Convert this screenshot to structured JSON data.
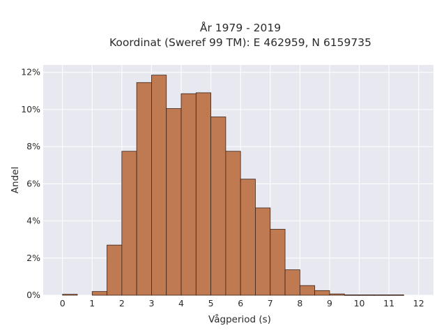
{
  "chart_data": {
    "type": "bar",
    "title_line1": "År 1979 - 2019",
    "title_line2": "Koordinat (Sweref 99 TM): E 462959, N 6159735",
    "xlabel": "Vågperiod (s)",
    "ylabel": "Andel",
    "bin_width": 0.5,
    "bins": [
      {
        "start": 0.0,
        "value": 0.0005
      },
      {
        "start": 0.5,
        "value": 0.0
      },
      {
        "start": 1.0,
        "value": 0.002
      },
      {
        "start": 1.5,
        "value": 0.027
      },
      {
        "start": 2.0,
        "value": 0.0775
      },
      {
        "start": 2.5,
        "value": 0.1145
      },
      {
        "start": 3.0,
        "value": 0.1185
      },
      {
        "start": 3.5,
        "value": 0.1005
      },
      {
        "start": 4.0,
        "value": 0.1085
      },
      {
        "start": 4.5,
        "value": 0.109
      },
      {
        "start": 5.0,
        "value": 0.096
      },
      {
        "start": 5.5,
        "value": 0.0775
      },
      {
        "start": 6.0,
        "value": 0.0625
      },
      {
        "start": 6.5,
        "value": 0.047
      },
      {
        "start": 7.0,
        "value": 0.0355
      },
      {
        "start": 7.5,
        "value": 0.0137
      },
      {
        "start": 8.0,
        "value": 0.0052
      },
      {
        "start": 8.5,
        "value": 0.0025
      },
      {
        "start": 9.0,
        "value": 0.0007
      },
      {
        "start": 9.5,
        "value": 0.0002
      },
      {
        "start": 10.0,
        "value": 0.0002
      },
      {
        "start": 10.5,
        "value": 0.0002
      },
      {
        "start": 11.0,
        "value": 0.0002
      }
    ],
    "xlim": [
      -0.65,
      12.5
    ],
    "ylim": [
      0,
      0.124
    ],
    "x_ticks": [
      {
        "value": 0,
        "label": "0"
      },
      {
        "value": 1,
        "label": "1"
      },
      {
        "value": 2,
        "label": "2"
      },
      {
        "value": 3,
        "label": "3"
      },
      {
        "value": 4,
        "label": "4"
      },
      {
        "value": 5,
        "label": "5"
      },
      {
        "value": 6,
        "label": "6"
      },
      {
        "value": 7,
        "label": "7"
      },
      {
        "value": 8,
        "label": "8"
      },
      {
        "value": 9,
        "label": "9"
      },
      {
        "value": 10,
        "label": "10"
      },
      {
        "value": 11,
        "label": "11"
      },
      {
        "value": 12,
        "label": "12"
      }
    ],
    "y_ticks": [
      {
        "value": 0,
        "label": "0%"
      },
      {
        "value": 0.02,
        "label": "2%"
      },
      {
        "value": 0.04,
        "label": "4%"
      },
      {
        "value": 0.06,
        "label": "6%"
      },
      {
        "value": 0.08,
        "label": "8%"
      },
      {
        "value": 0.1,
        "label": "10%"
      },
      {
        "value": 0.12,
        "label": "12%"
      }
    ],
    "grid": true,
    "colors": {
      "bar_fill": "#bf7a52",
      "bar_edge": "#3a2216",
      "plot_background": "#e8e8f0",
      "grid": "#ffffff",
      "text": "#2a2a2a"
    }
  }
}
